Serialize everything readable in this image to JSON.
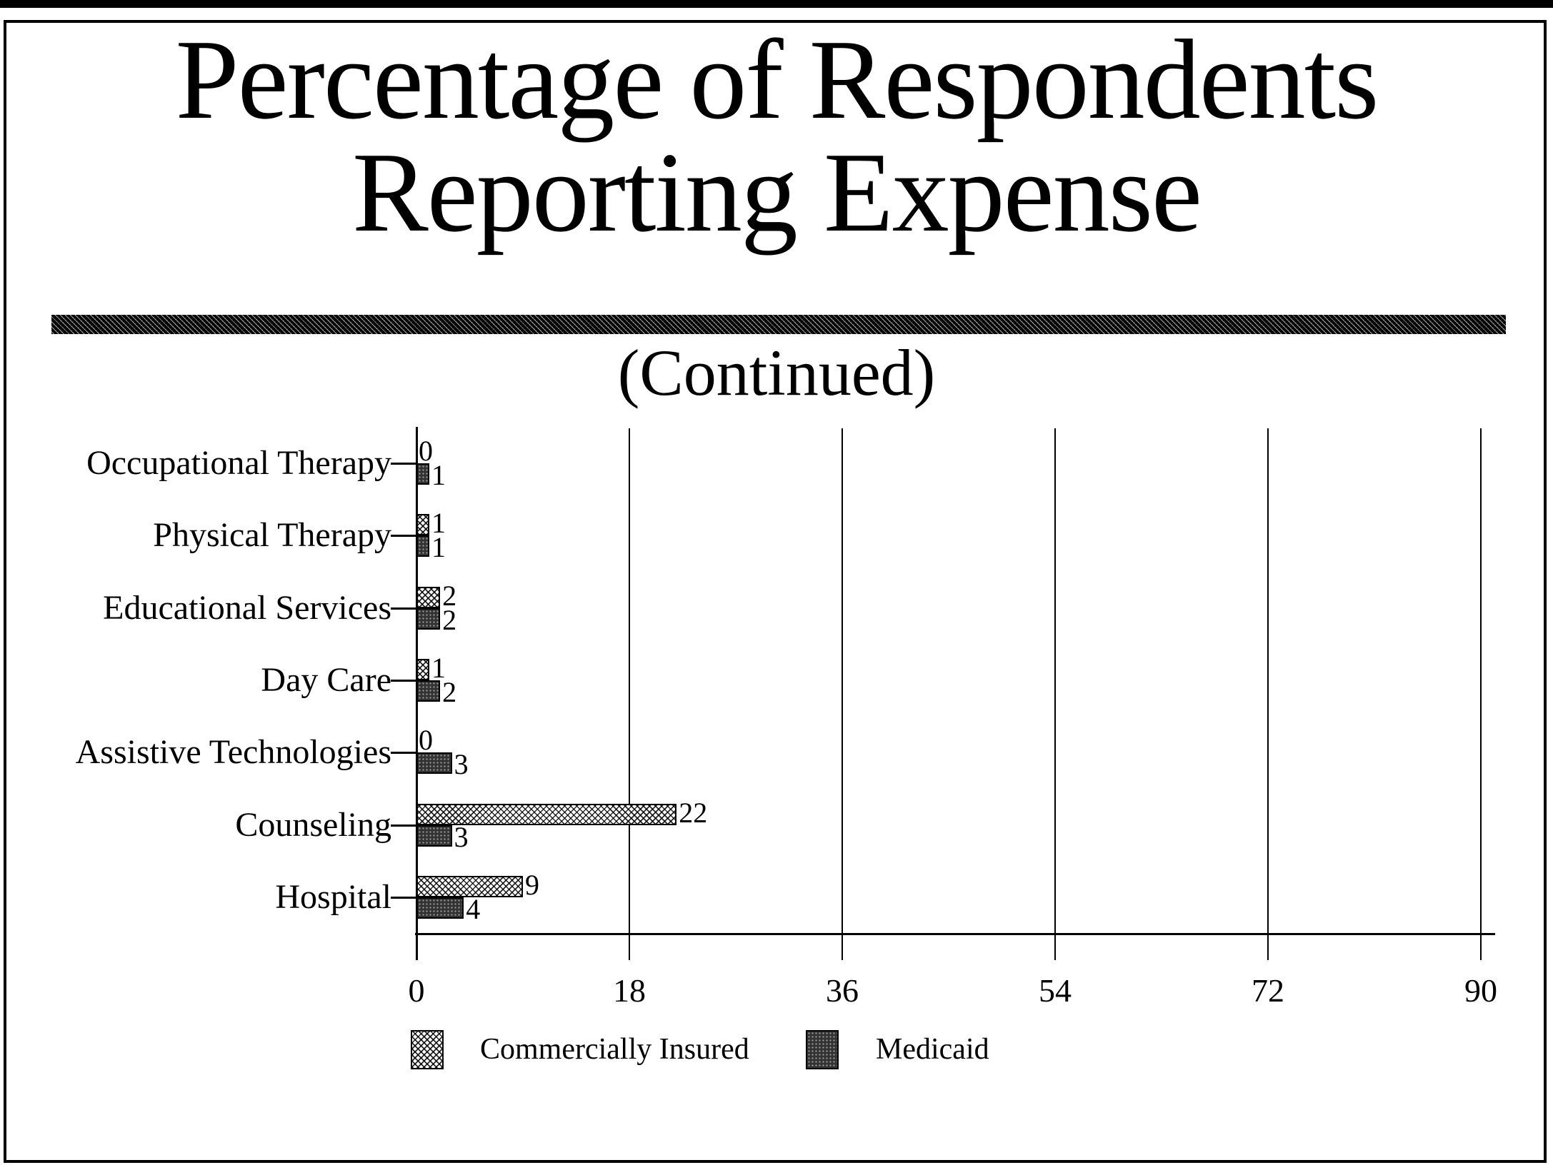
{
  "slide": {
    "title_line1": "Percentage of Respondents",
    "title_line2": "Reporting Expense",
    "subtitle": "(Continued)"
  },
  "chart_data": {
    "type": "bar",
    "orientation": "horizontal",
    "title": "Percentage of Respondents Reporting Expense (Continued)",
    "categories": [
      "Occupational Therapy",
      "Physical Therapy",
      "Educational Services",
      "Day Care",
      "Assistive Technologies",
      "Counseling",
      "Hospital"
    ],
    "series": [
      {
        "name": "Commercially Insured",
        "pattern": "light-crosshatch",
        "values": [
          0,
          1,
          2,
          1,
          0,
          22,
          9
        ]
      },
      {
        "name": "Medicaid",
        "pattern": "dark-dotted",
        "values": [
          1,
          1,
          2,
          2,
          3,
          3,
          4
        ]
      }
    ],
    "xlabel": "",
    "ylabel": "",
    "xlim": [
      0,
      90
    ],
    "xticks": [
      0,
      18,
      36,
      54,
      72,
      90
    ],
    "grid": "vertical",
    "data_labels": true,
    "legend_position": "bottom",
    "colors": {
      "ink": "#000000",
      "paper": "#ffffff",
      "medicaid_fill": "#333333"
    }
  }
}
